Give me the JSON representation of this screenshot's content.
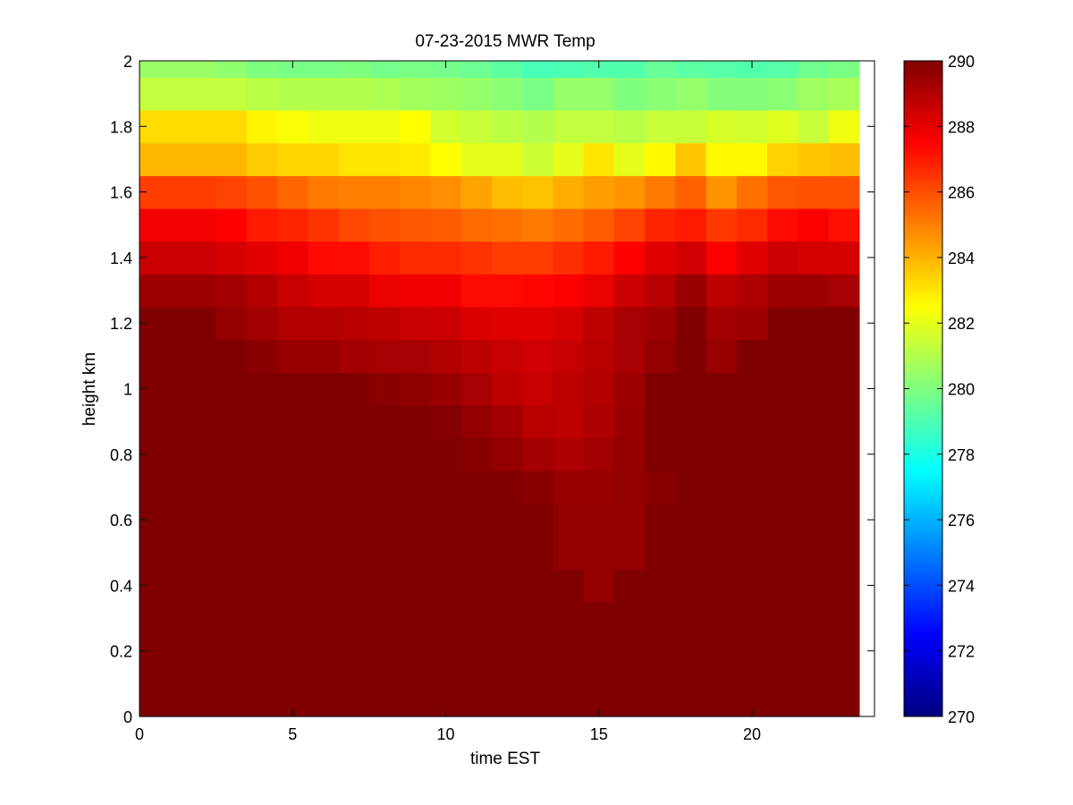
{
  "chart_data": {
    "type": "heatmap",
    "title": "07-23-2015 MWR Temp",
    "xlabel": "time EST",
    "ylabel": "height km",
    "xlim": [
      0,
      24
    ],
    "ylim": [
      0,
      2
    ],
    "xticks": [
      0,
      5,
      10,
      15,
      20
    ],
    "yticks": [
      0,
      0.2,
      0.4,
      0.6,
      0.8,
      1,
      1.2,
      1.4,
      1.6,
      1.8,
      2
    ],
    "colormap": "jet",
    "clim": [
      270,
      290
    ],
    "colorbar_ticks": [
      270,
      272,
      274,
      276,
      278,
      280,
      282,
      284,
      286,
      288,
      290
    ],
    "x_bin_edges": [
      0,
      2.5,
      3.5,
      4.5,
      5.5,
      6.5,
      7.5,
      8.5,
      9.5,
      10.5,
      11.5,
      12.5,
      13.5,
      14.5,
      15.5,
      16.5,
      17.5,
      18.5,
      19.5,
      20.5,
      21.5,
      22.5,
      23.5
    ],
    "y_bin_edges": [
      0,
      0.35,
      0.45,
      0.65,
      0.75,
      0.85,
      0.95,
      1.05,
      1.15,
      1.25,
      1.35,
      1.45,
      1.55,
      1.65,
      1.75,
      1.85,
      1.95,
      2.0
    ],
    "z": [
      [
        290,
        290,
        290,
        290,
        290,
        290,
        290,
        290,
        290,
        290,
        290,
        290,
        290,
        290,
        290,
        290,
        290,
        290,
        290,
        290,
        290,
        290
      ],
      [
        290,
        290,
        290,
        290,
        290,
        290,
        290,
        290,
        290,
        290,
        290,
        290,
        290,
        289.6,
        290,
        290,
        290,
        290,
        290,
        290,
        290,
        290
      ],
      [
        290,
        290,
        290,
        290,
        290,
        290,
        290,
        290,
        290,
        290,
        290,
        290,
        289.6,
        289.6,
        289.6,
        290,
        290,
        290,
        290,
        290,
        290,
        290
      ],
      [
        290,
        290,
        290,
        290,
        290,
        290,
        290,
        290,
        290,
        290,
        290,
        289.8,
        289.5,
        289.5,
        289.6,
        289.8,
        290,
        290,
        290,
        290,
        290,
        290
      ],
      [
        290,
        290,
        290,
        290,
        290,
        290,
        290,
        290,
        290,
        289.8,
        289.6,
        289.3,
        289.1,
        289.3,
        289.6,
        290,
        290,
        290,
        290,
        290,
        290,
        290
      ],
      [
        290,
        290,
        290,
        290,
        290,
        290,
        290,
        290,
        289.9,
        289.6,
        289.3,
        288.9,
        288.8,
        289.1,
        289.5,
        290,
        290,
        290,
        290,
        290,
        290,
        290
      ],
      [
        290,
        290,
        290,
        290,
        290,
        290,
        289.8,
        289.7,
        289.5,
        289.2,
        288.8,
        288.6,
        288.8,
        289.0,
        289.4,
        290,
        290,
        290,
        290,
        290,
        290,
        290
      ],
      [
        290,
        290,
        289.8,
        289.5,
        289.5,
        289.3,
        289.2,
        289.2,
        289.0,
        288.8,
        288.6,
        288.4,
        288.6,
        288.9,
        289.2,
        289.6,
        290,
        289.5,
        290,
        290,
        290,
        290
      ],
      [
        290,
        289.6,
        289.3,
        289.0,
        289.0,
        288.9,
        288.8,
        288.6,
        288.5,
        288.2,
        288.1,
        288.1,
        288.3,
        288.8,
        289.2,
        289.4,
        290,
        289.3,
        289.4,
        290,
        290,
        290
      ],
      [
        289.4,
        289.3,
        289.0,
        288.6,
        288.3,
        288.3,
        287.9,
        287.8,
        287.8,
        287.3,
        287.3,
        287.4,
        287.6,
        287.9,
        288.5,
        288.9,
        289.5,
        288.8,
        289.1,
        289.4,
        289.4,
        289.2
      ],
      [
        288.5,
        288.3,
        288.0,
        287.8,
        287.3,
        287.3,
        286.9,
        286.7,
        286.7,
        286.5,
        286.3,
        286.3,
        286.6,
        287.0,
        287.5,
        288.1,
        288.4,
        287.6,
        288.1,
        288.5,
        288.3,
        288.3
      ],
      [
        287.7,
        287.5,
        287.0,
        286.8,
        286.5,
        286.1,
        285.9,
        285.8,
        285.7,
        285.4,
        285.3,
        285.1,
        285.4,
        285.7,
        286.2,
        286.8,
        287.0,
        286.4,
        286.7,
        287.3,
        287.6,
        287.2
      ],
      [
        286.3,
        286.2,
        285.9,
        285.5,
        285.1,
        285.0,
        285.0,
        284.9,
        284.7,
        284.3,
        283.8,
        283.7,
        284.1,
        284.4,
        284.6,
        285.1,
        285.6,
        284.6,
        285.3,
        285.8,
        285.9,
        285.9
      ],
      [
        283.9,
        283.9,
        283.5,
        283.3,
        283.3,
        283.0,
        283.0,
        282.9,
        282.5,
        282.0,
        282.0,
        281.5,
        282.0,
        283.0,
        282.0,
        282.6,
        283.6,
        282.6,
        282.6,
        283.4,
        283.6,
        283.8
      ],
      [
        283.2,
        283.2,
        282.7,
        282.4,
        282.2,
        282.2,
        282.2,
        282.5,
        281.6,
        281.4,
        281.2,
        281.0,
        281.3,
        281.3,
        281.1,
        281.4,
        281.4,
        281.7,
        281.6,
        281.9,
        281.4,
        282.2
      ],
      [
        281.3,
        281.3,
        281.1,
        281.0,
        281.0,
        281.0,
        280.9,
        280.7,
        280.6,
        280.4,
        280.2,
        279.9,
        280.4,
        280.4,
        280.0,
        280.2,
        280.4,
        280.1,
        280.1,
        280.2,
        280.6,
        280.8
      ],
      [
        280.5,
        280.3,
        280.0,
        279.9,
        279.9,
        280.0,
        279.8,
        279.9,
        279.8,
        279.6,
        279.3,
        278.9,
        279.0,
        279.1,
        279.1,
        279.5,
        279.3,
        279.2,
        279.1,
        279.2,
        279.7,
        279.9
      ]
    ]
  }
}
